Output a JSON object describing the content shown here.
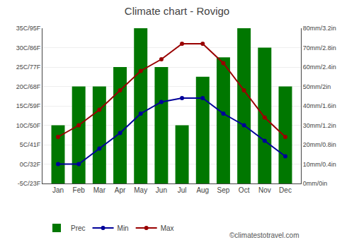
{
  "chart_data": {
    "type": "combo",
    "title": "Climate chart - Rovigo",
    "categories": [
      "Jan",
      "Feb",
      "Mar",
      "Apr",
      "May",
      "Jun",
      "Jul",
      "Aug",
      "Sep",
      "Oct",
      "Nov",
      "Dec"
    ],
    "series": [
      {
        "name": "Prec",
        "type": "bar",
        "axis": "y2",
        "color": "#007700",
        "values": [
          30,
          50,
          50,
          60,
          80,
          60,
          30,
          55,
          65,
          80,
          70,
          50
        ]
      },
      {
        "name": "Min",
        "type": "line",
        "marker": "circle",
        "color": "#000099",
        "values": [
          0,
          0,
          4,
          8,
          13,
          16,
          17,
          17,
          13,
          10,
          6,
          2
        ]
      },
      {
        "name": "Max",
        "type": "line",
        "marker": "circle",
        "color": "#990000",
        "values": [
          7,
          10,
          14,
          19,
          24,
          27,
          31,
          31,
          26,
          19,
          12,
          7
        ]
      }
    ],
    "ylim": [
      -5,
      35
    ],
    "yticks": [
      {
        "value": -5,
        "label": "-5C/23F"
      },
      {
        "value": 0,
        "label": "0C/32F"
      },
      {
        "value": 5,
        "label": "5C/41F"
      },
      {
        "value": 10,
        "label": "10C/50F"
      },
      {
        "value": 15,
        "label": "15C/59F"
      },
      {
        "value": 20,
        "label": "20C/68F"
      },
      {
        "value": 25,
        "label": "25C/77F"
      },
      {
        "value": 30,
        "label": "30C/86F"
      },
      {
        "value": 35,
        "label": "35C/95F"
      }
    ],
    "y2lim": [
      0,
      80
    ],
    "y2ticks": [
      {
        "value": 0,
        "label": "0mm/0in"
      },
      {
        "value": 10,
        "label": "10mm/0.4in"
      },
      {
        "value": 20,
        "label": "20mm/0.8in"
      },
      {
        "value": 30,
        "label": "30mm/1.2in"
      },
      {
        "value": 40,
        "label": "40mm/1.6in"
      },
      {
        "value": 50,
        "label": "50mm/2in"
      },
      {
        "value": 60,
        "label": "60mm/2.4in"
      },
      {
        "value": 70,
        "label": "70mm/2.8in"
      },
      {
        "value": 80,
        "label": "80mm/3.2in"
      }
    ],
    "grid": true,
    "legend": "bottom",
    "annotations": [
      "©climatestotravel.com"
    ]
  }
}
